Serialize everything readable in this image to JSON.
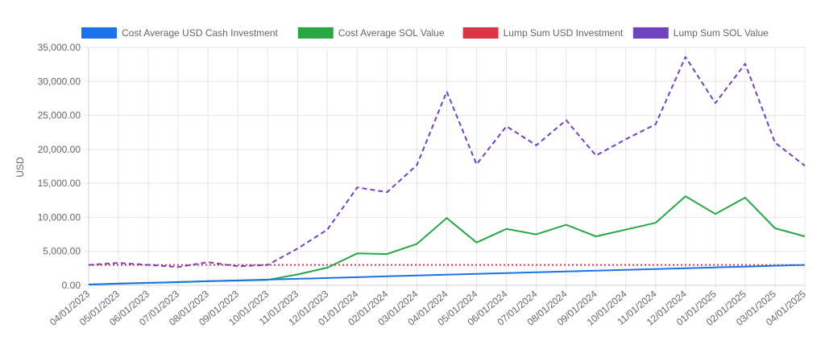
{
  "chart_data": {
    "type": "line",
    "title": "",
    "xlabel": "",
    "ylabel": "USD",
    "ylim": [
      0,
      35000
    ],
    "yticks": [
      "0.00",
      "5,000.00",
      "10,000.00",
      "15,000.00",
      "20,000.00",
      "25,000.00",
      "30,000.00",
      "35,000.00"
    ],
    "grid": true,
    "legend_position": "top",
    "categories": [
      "04/01/2023",
      "05/01/2023",
      "06/01/2023",
      "07/01/2023",
      "08/01/2023",
      "09/01/2023",
      "10/01/2023",
      "11/01/2023",
      "12/01/2023",
      "01/01/2024",
      "02/01/2024",
      "03/01/2024",
      "04/01/2024",
      "05/01/2024",
      "06/01/2024",
      "07/01/2024",
      "08/01/2024",
      "09/01/2024",
      "10/01/2024",
      "11/01/2024",
      "12/01/2024",
      "01/01/2025",
      "02/01/2025",
      "03/01/2025",
      "04/01/2025"
    ],
    "series": [
      {
        "name": "Cost Average USD Cash Investment",
        "color": "#1a73e8",
        "dashed": false,
        "values": [
          120,
          240,
          360,
          480,
          600,
          720,
          840,
          960,
          1080,
          1200,
          1320,
          1440,
          1560,
          1680,
          1800,
          1920,
          2040,
          2160,
          2280,
          2400,
          2520,
          2640,
          2760,
          2880,
          3000
        ]
      },
      {
        "name": "Cost Average SOL Value",
        "color": "#28a745",
        "dashed": false,
        "values": [
          120,
          260,
          370,
          450,
          620,
          700,
          800,
          1600,
          2600,
          4700,
          4600,
          6100,
          9900,
          6300,
          8300,
          7500,
          8900,
          7200,
          8200,
          9200,
          13100,
          10500,
          12900,
          8400,
          7200
        ]
      },
      {
        "name": "Lump Sum USD Investment",
        "color": "#dc3545",
        "dashed": "dotted",
        "values": [
          3000,
          3000,
          3000,
          3000,
          3000,
          3000,
          3000,
          3000,
          3000,
          3000,
          3000,
          3000,
          3000,
          3000,
          3000,
          3000,
          3000,
          3000,
          3000,
          3000,
          3000,
          3000,
          3000,
          3000,
          3000
        ]
      },
      {
        "name": "Lump Sum SOL Value",
        "color": "#6f42c1",
        "dashed": "dashed",
        "values": [
          3000,
          3300,
          3000,
          2700,
          3400,
          2800,
          3000,
          5400,
          8200,
          14400,
          13700,
          17700,
          28500,
          17800,
          23400,
          20600,
          24300,
          19100,
          21500,
          23700,
          33600,
          26800,
          32600,
          21000,
          17600
        ]
      }
    ]
  }
}
